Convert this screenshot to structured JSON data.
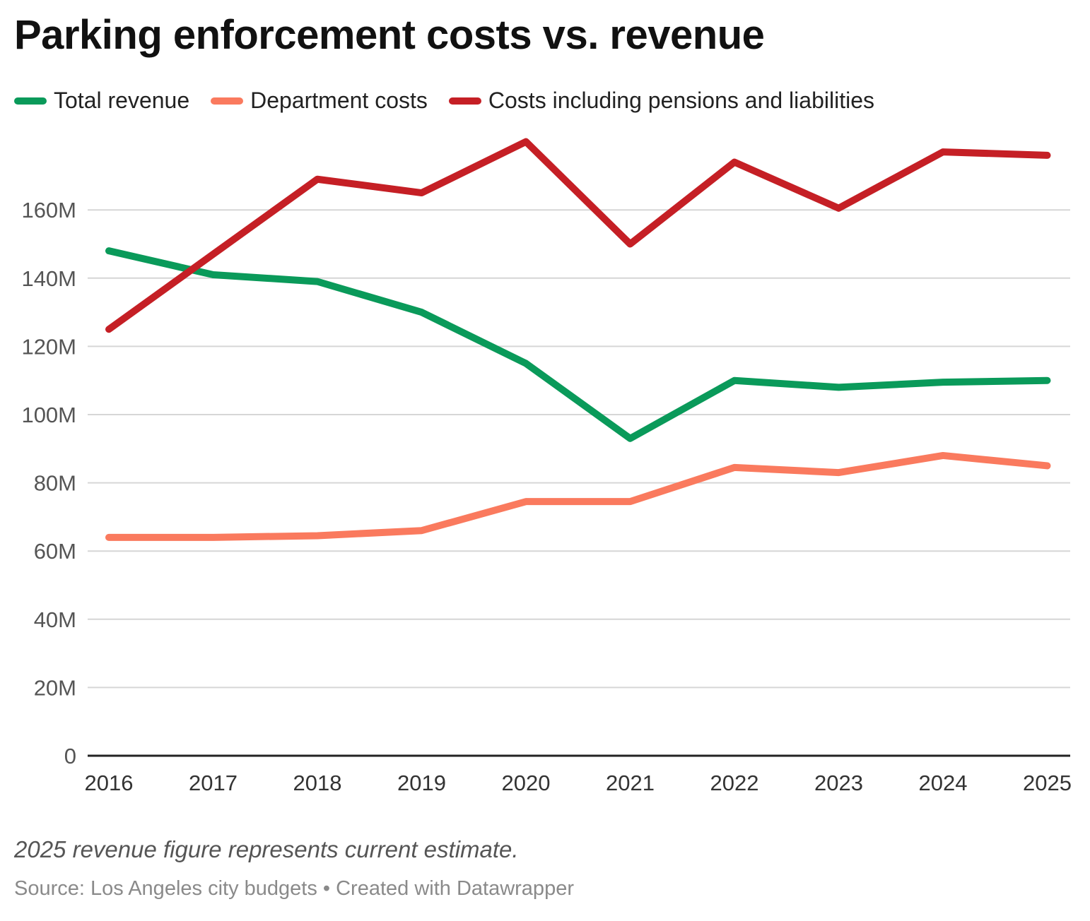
{
  "chart_data": {
    "type": "line",
    "title": "Parking enforcement costs vs. revenue",
    "x": [
      "2016",
      "2017",
      "2018",
      "2019",
      "2020",
      "2021",
      "2022",
      "2023",
      "2024",
      "2025"
    ],
    "ylim": [
      0,
      180000000
    ],
    "yticks": [
      0,
      20000000,
      40000000,
      60000000,
      80000000,
      100000000,
      120000000,
      140000000,
      160000000
    ],
    "ytick_labels": [
      "0",
      "20M",
      "40M",
      "60M",
      "80M",
      "100M",
      "120M",
      "140M",
      "160M"
    ],
    "grid": true,
    "legend_position": "top-left",
    "series": [
      {
        "name": "Total revenue",
        "color": "#0a9a5a",
        "values": [
          148000000,
          141000000,
          139000000,
          130000000,
          115000000,
          93000000,
          110000000,
          108000000,
          109500000,
          110000000
        ]
      },
      {
        "name": "Department costs",
        "color": "#fa7a5e",
        "values": [
          64000000,
          64000000,
          64500000,
          66000000,
          74500000,
          74500000,
          84500000,
          83000000,
          88000000,
          85000000
        ]
      },
      {
        "name": "Costs including pensions and liabilities",
        "color": "#c51f25",
        "values": [
          125000000,
          147000000,
          169000000,
          165000000,
          180000000,
          150000000,
          174000000,
          160500000,
          177000000,
          176000000
        ]
      }
    ]
  },
  "footnote": "2025 revenue figure represents current estimate.",
  "source": "Source: Los Angeles city budgets • Created with Datawrapper"
}
